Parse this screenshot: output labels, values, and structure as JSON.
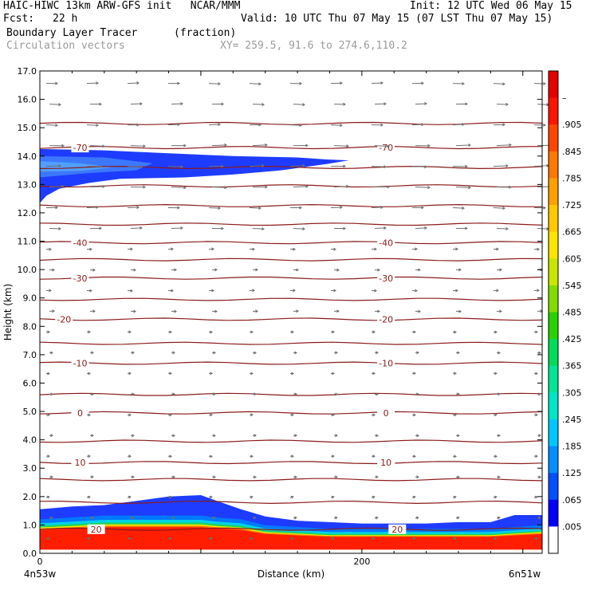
{
  "header": {
    "title_left": "HAIC-HIWC 13km ARW-GFS init   NCAR/MMM",
    "init": "Init: 12 UTC Wed 06 May 15",
    "fcst_label": "Fcst:",
    "fcst_value": "22 h",
    "valid": "Valid: 10 UTC Thu 07 May 15 (07 LST Thu 07 May 15)",
    "field_name": "Boundary Layer Tracer",
    "field_units": "(fraction)",
    "vector_label": "Circulation vectors",
    "xy_label": "XY= 259.5, 91.6 to 274.6,110.2"
  },
  "chart_data": {
    "type": "heatmap",
    "xlabel": "Distance (km)",
    "ylabel": "Height (km)",
    "xlim": [
      0,
      312
    ],
    "ylim": [
      0,
      17
    ],
    "x_ticks": [
      {
        "value": 0,
        "label": "0"
      },
      {
        "value": 200,
        "label": "200"
      }
    ],
    "x_endpoints": {
      "left": "4n53w",
      "right": "6n51w"
    },
    "y_ticks": [
      "0.0",
      "1.0",
      "2.0",
      "3.0",
      "4.0",
      "5.0",
      "6.0",
      "7.0",
      "8.0",
      "9.0",
      "10.0",
      "11.0",
      "12.0",
      "13.0",
      "14.0",
      "15.0",
      "16.0",
      "17.0"
    ],
    "colorbar": {
      "labels": [
        ".005",
        ".065",
        ".125",
        ".185",
        ".245",
        ".305",
        ".365",
        ".425",
        ".485",
        ".545",
        ".605",
        ".665",
        ".725",
        ".785",
        ".845",
        ".905",
        "–"
      ],
      "colors": [
        "#ffffff",
        "#0000ff",
        "#0050ff",
        "#0090ff",
        "#00c8ff",
        "#00e6c8",
        "#00e696",
        "#00dc5a",
        "#28d200",
        "#82dc00",
        "#c8e600",
        "#fae600",
        "#ffc800",
        "#ffa000",
        "#ff7800",
        "#ff4600",
        "#ff1400",
        "#e60000"
      ]
    },
    "isotherm_labels": [
      {
        "label": "-70",
        "height_km": 14.3,
        "x_km": [
          25,
          215
        ]
      },
      {
        "label": "-40",
        "height_km": 10.95,
        "x_km": [
          25,
          215
        ]
      },
      {
        "label": "-30",
        "height_km": 9.7,
        "x_km": [
          25,
          215
        ]
      },
      {
        "label": "-20",
        "height_km": 8.25,
        "x_km": [
          15,
          215
        ]
      },
      {
        "label": "-10",
        "height_km": 6.7,
        "x_km": [
          25,
          215
        ]
      },
      {
        "label": "0",
        "height_km": 4.95,
        "x_km": [
          25,
          215
        ]
      },
      {
        "label": "10",
        "height_km": 3.2,
        "x_km": [
          25,
          215
        ]
      },
      {
        "label": "20",
        "height_km": 0.85,
        "x_km": [
          35,
          222
        ]
      }
    ],
    "isotherm_heights_km": [
      0.85,
      1.8,
      2.6,
      3.2,
      3.95,
      4.95,
      5.6,
      6.7,
      7.4,
      8.25,
      8.95,
      9.7,
      10.35,
      10.95,
      11.6,
      12.25,
      12.95,
      13.6,
      14.3,
      15.15
    ],
    "tracer_upper_layer": {
      "x_km": [
        0,
        20,
        40,
        60,
        80,
        100,
        120,
        140,
        160,
        175,
        183,
        175,
        150,
        120,
        90,
        60,
        30,
        0
      ],
      "top_km": [
        14.2,
        14.2,
        14.1,
        14.0,
        13.95,
        13.95,
        13.9,
        13.9,
        13.85,
        13.8,
        13.85
      ],
      "bottom_km": [
        13.35,
        13.3,
        13.2,
        13.15,
        13.2,
        13.25,
        13.2,
        13.1
      ]
    },
    "tracer_boundary_layer": {
      "x_km": [
        0,
        20,
        40,
        60,
        80,
        100,
        110,
        125,
        140,
        160,
        180,
        200,
        220,
        240,
        260,
        280,
        295,
        312
      ],
      "top_km": [
        1.55,
        1.65,
        1.7,
        1.85,
        2.0,
        2.05,
        1.85,
        1.55,
        1.3,
        1.15,
        1.1,
        1.05,
        1.05,
        1.05,
        1.1,
        1.1,
        1.35,
        1.35
      ],
      "red_top_km": [
        0.85,
        0.9,
        0.95,
        0.95,
        0.95,
        0.95,
        0.9,
        0.85,
        0.7,
        0.65,
        0.6,
        0.6,
        0.6,
        0.6,
        0.6,
        0.6,
        0.65,
        0.7
      ]
    }
  }
}
